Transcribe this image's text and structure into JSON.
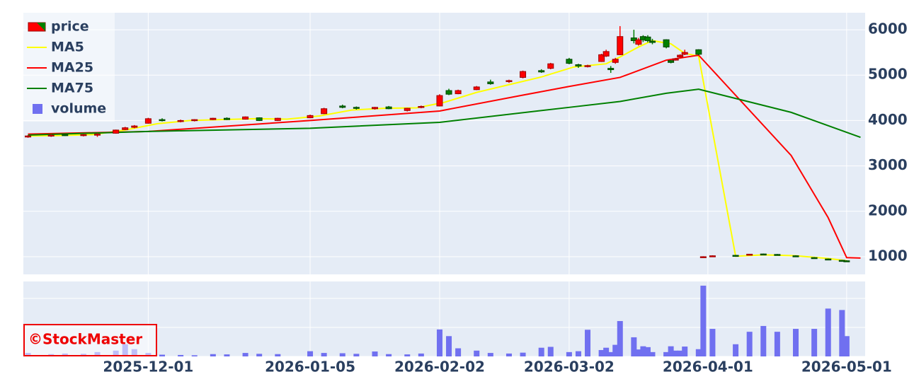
{
  "chart_data": {
    "type": "candlestick",
    "x": [
      "2025-11-05",
      "2025-11-10",
      "2025-11-13",
      "2025-11-17",
      "2025-11-20",
      "2025-11-24",
      "2025-11-26",
      "2025-11-28",
      "2025-12-01",
      "2025-12-04",
      "2025-12-08",
      "2025-12-11",
      "2025-12-15",
      "2025-12-18",
      "2025-12-22",
      "2025-12-25",
      "2025-12-29",
      "2026-01-05",
      "2026-01-08",
      "2026-01-12",
      "2026-01-15",
      "2026-01-19",
      "2026-01-22",
      "2026-01-26",
      "2026-01-29",
      "2026-02-02",
      "2026-02-04",
      "2026-02-06",
      "2026-02-10",
      "2026-02-13",
      "2026-02-17",
      "2026-02-20",
      "2026-02-24",
      "2026-02-26",
      "2026-03-02",
      "2026-03-04",
      "2026-03-06",
      "2026-03-09",
      "2026-03-10",
      "2026-03-11",
      "2026-03-12",
      "2026-03-13",
      "2026-03-16",
      "2026-03-17",
      "2026-03-18",
      "2026-03-19",
      "2026-03-20",
      "2026-03-23",
      "2026-03-24",
      "2026-03-25",
      "2026-03-26",
      "2026-03-27",
      "2026-03-30",
      "2026-03-31",
      "2026-04-02",
      "2026-04-07",
      "2026-04-10",
      "2026-04-13",
      "2026-04-16",
      "2026-04-20",
      "2026-04-24",
      "2026-04-27",
      "2026-04-30",
      "2026-05-01"
    ],
    "open": [
      3650,
      3660,
      3690,
      3670,
      3680,
      3720,
      3800,
      3850,
      3940,
      4020,
      3990,
      4000,
      4020,
      4050,
      4030,
      4060,
      4000,
      4060,
      4150,
      4320,
      4290,
      4260,
      4300,
      4220,
      4290,
      4320,
      4660,
      4590,
      4680,
      4850,
      4860,
      4950,
      5100,
      5150,
      5350,
      5230,
      5200,
      5300,
      5420,
      5150,
      5280,
      5450,
      5820,
      5680,
      5850,
      5840,
      5750,
      5780,
      5320,
      5330,
      5400,
      5460,
      5560,
      980,
      1020,
      1030,
      1040,
      1060,
      1050,
      1020,
      980,
      950,
      920,
      910
    ],
    "high": [
      3680,
      3700,
      3710,
      3700,
      3720,
      3800,
      3860,
      3900,
      4060,
      4050,
      4020,
      4030,
      4060,
      4070,
      4090,
      4070,
      4060,
      4130,
      4280,
      4350,
      4310,
      4300,
      4320,
      4280,
      4330,
      4580,
      4700,
      4680,
      4760,
      4900,
      4900,
      5100,
      5130,
      5270,
      5380,
      5250,
      5230,
      5470,
      5560,
      5200,
      5380,
      6080,
      6000,
      5820,
      5880,
      5880,
      5800,
      5790,
      5330,
      5380,
      5460,
      5560,
      5570,
      1010,
      1030,
      1040,
      1060,
      1070,
      1060,
      1030,
      990,
      960,
      930,
      920
    ],
    "low": [
      3620,
      3640,
      3660,
      3650,
      3640,
      3710,
      3790,
      3830,
      3930,
      3980,
      3960,
      3980,
      4010,
      4010,
      4020,
      3990,
      3990,
      4050,
      4140,
      4270,
      4240,
      4240,
      4250,
      4200,
      4270,
      4310,
      4560,
      4580,
      4670,
      4790,
      4830,
      4930,
      5050,
      5130,
      5240,
      5160,
      5170,
      5290,
      5400,
      5050,
      5250,
      5440,
      5700,
      5650,
      5730,
      5720,
      5680,
      5590,
      5260,
      5320,
      5380,
      5440,
      5440,
      970,
      1010,
      1020,
      1040,
      1040,
      1040,
      1000,
      960,
      930,
      900,
      890
    ],
    "close": [
      3660,
      3680,
      3670,
      3690,
      3700,
      3790,
      3840,
      3880,
      4040,
      4000,
      4000,
      4020,
      4050,
      4020,
      4080,
      4000,
      4050,
      4110,
      4260,
      4290,
      4270,
      4290,
      4260,
      4270,
      4310,
      4550,
      4580,
      4660,
      4740,
      4810,
      4880,
      5080,
      5070,
      5250,
      5260,
      5200,
      5210,
      5450,
      5520,
      5120,
      5350,
      5850,
      5760,
      5780,
      5780,
      5760,
      5720,
      5620,
      5280,
      5360,
      5440,
      5500,
      5460,
      1000,
      1020,
      1025,
      1055,
      1045,
      1045,
      1005,
      970,
      940,
      910,
      900
    ],
    "volume": [
      120000,
      80000,
      100000,
      90000,
      150000,
      200000,
      420000,
      250000,
      120000,
      60000,
      50000,
      40000,
      80000,
      70000,
      120000,
      90000,
      80000,
      180000,
      120000,
      110000,
      90000,
      170000,
      80000,
      70000,
      100000,
      930000,
      700000,
      280000,
      200000,
      120000,
      100000,
      130000,
      300000,
      330000,
      150000,
      180000,
      920000,
      220000,
      300000,
      150000,
      400000,
      1220000,
      660000,
      240000,
      350000,
      320000,
      150000,
      150000,
      350000,
      200000,
      200000,
      340000,
      250000,
      2440000,
      950000,
      420000,
      850000,
      1050000,
      850000,
      950000,
      950000,
      1650000,
      1600000,
      700000
    ],
    "price_name": "price",
    "volume_name": "volume",
    "increasing_color": "#ff0000",
    "decreasing_color": "#008000",
    "volume_color": "#7070f0",
    "series": [
      {
        "name": "MA5",
        "color": "#ffff00",
        "x": [
          "2025-11-05",
          "2025-11-12",
          "2025-11-19",
          "2025-11-26",
          "2025-12-03",
          "2025-12-10",
          "2025-12-17",
          "2025-12-24",
          "2025-12-31",
          "2026-01-07",
          "2026-01-14",
          "2026-01-21",
          "2026-01-28",
          "2026-02-03",
          "2026-02-10",
          "2026-02-17",
          "2026-02-24",
          "2026-03-03",
          "2026-03-10",
          "2026-03-13",
          "2026-03-17",
          "2026-03-20",
          "2026-03-24",
          "2026-03-27",
          "2026-03-30",
          "2026-04-07",
          "2026-04-13",
          "2026-04-20",
          "2026-04-27",
          "2026-05-01"
        ],
        "values": [
          3660,
          3670,
          3690,
          3790,
          3930,
          4000,
          4020,
          4040,
          4030,
          4100,
          4230,
          4270,
          4280,
          4400,
          4620,
          4790,
          4960,
          5180,
          5250,
          5400,
          5620,
          5760,
          5690,
          5480,
          5420,
          1010,
          1040,
          1020,
          960,
          910
        ]
      },
      {
        "name": "MA25",
        "color": "#ff0000",
        "x": [
          "2025-11-05",
          "2025-12-01",
          "2026-01-05",
          "2026-02-02",
          "2026-02-20",
          "2026-03-02",
          "2026-03-13",
          "2026-03-23",
          "2026-03-30",
          "2026-04-19",
          "2026-04-27",
          "2026-05-01",
          "2026-05-04"
        ],
        "values": [
          3700,
          3760,
          4000,
          4210,
          4560,
          4750,
          4950,
          5330,
          5440,
          3230,
          1860,
          980,
          970
        ]
      },
      {
        "name": "MA75",
        "color": "#008000",
        "x": [
          "2025-11-05",
          "2025-12-01",
          "2026-01-05",
          "2026-02-02",
          "2026-03-02",
          "2026-03-13",
          "2026-03-23",
          "2026-03-30",
          "2026-04-19",
          "2026-05-04"
        ],
        "values": [
          3680,
          3760,
          3830,
          3960,
          4290,
          4420,
          4600,
          4690,
          4180,
          3630
        ]
      }
    ],
    "xlim": [
      "2025-11-04",
      "2026-05-05"
    ],
    "xticks": [
      "2025-12-01",
      "2026-01-05",
      "2026-02-02",
      "2026-03-02",
      "2026-04-01",
      "2026-05-01"
    ],
    "ylim": [
      610,
      6375
    ],
    "yticks": [
      1000,
      2000,
      3000,
      4000,
      5000,
      6000
    ],
    "volume_ylim": [
      0,
      2585000
    ],
    "volume_grid": [
      0,
      1000000,
      2000000
    ],
    "grid": true,
    "legend": "top-left",
    "watermark": "©StockMaster"
  }
}
